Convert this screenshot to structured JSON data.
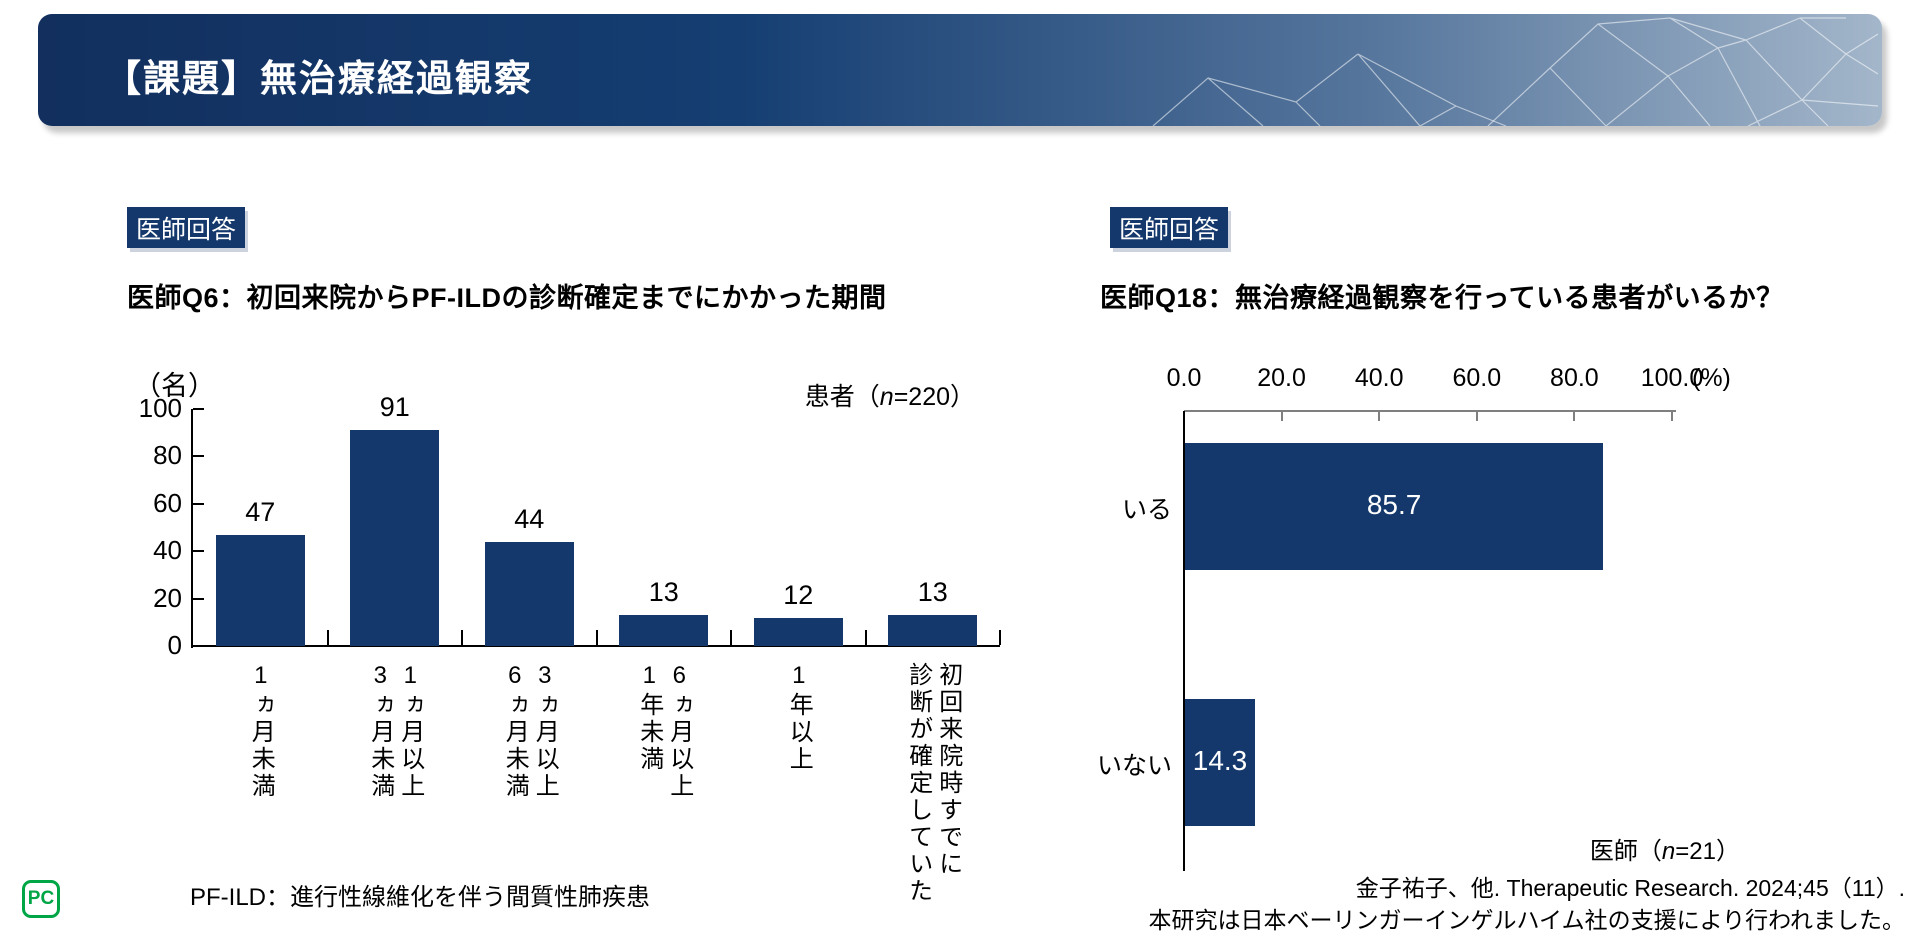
{
  "header": {
    "title": "【課題】無治療経過観察"
  },
  "logo": {
    "text": "PC",
    "color": "#00A546"
  },
  "colors": {
    "navy": "#14386C",
    "axis_gray": "#7f7f7f"
  },
  "left_panel": {
    "badge": "医師回答",
    "title": "医師Q6：初回来院からPF-ILDの診断確定までにかかった期間",
    "unit": "（名）",
    "sample": {
      "prefix": "患者（",
      "n": "n",
      "suffix": "=220）"
    },
    "footnote": "PF-ILD：進行性線維化を伴う間質性肺疾患"
  },
  "right_panel": {
    "badge": "医師回答",
    "title": "医師Q18：無治療経過観察を行っている患者がいるか？",
    "percent_label": "(%)",
    "sample": {
      "prefix": "医師（",
      "n": "n",
      "suffix": "=21）"
    }
  },
  "footer": {
    "citation_line1": "金子祐子、他. Therapeutic Research. 2024;45（11）.",
    "citation_line2": "本研究は日本ベーリンガーインゲルハイム社の支援により行われました。"
  },
  "chart_data": [
    {
      "type": "bar",
      "orientation": "vertical",
      "title": "医師Q6：初回来院からPF-ILDの診断確定までにかかった期間",
      "categories": [
        "1ヵ月未満",
        "1ヵ月以上3ヵ月未満",
        "3ヵ月以上6ヵ月未満",
        "6ヵ月以上1年未満",
        "1年以上",
        "初回来院時すでに診断が確定していた"
      ],
      "category_lines": [
        [
          "1ヵ月未満"
        ],
        [
          "1ヵ月以上",
          "3ヵ月未満"
        ],
        [
          "3ヵ月以上",
          "6ヵ月未満"
        ],
        [
          "6ヵ月以上",
          "1年未満"
        ],
        [
          "1年以上"
        ],
        [
          "初回来院時すでに",
          "診断が確定していた"
        ]
      ],
      "values": [
        47,
        91,
        44,
        13,
        12,
        13
      ],
      "ylabel": "（名）",
      "ylim": [
        0,
        100
      ],
      "yticks": [
        0,
        20,
        40,
        60,
        80,
        100
      ],
      "grid": false,
      "sample": "患者（n=220）"
    },
    {
      "type": "bar",
      "orientation": "horizontal",
      "title": "医師Q18：無治療経過観察を行っている患者がいるか？",
      "categories": [
        "いる",
        "いない"
      ],
      "values": [
        85.7,
        14.3
      ],
      "value_labels": [
        "85.7",
        "14.3"
      ],
      "xlabel": "(%)",
      "xlim": [
        0,
        100
      ],
      "xticks": [
        "0.0",
        "20.0",
        "40.0",
        "60.0",
        "80.0",
        "100.0"
      ],
      "grid": false,
      "sample": "医師（n=21）"
    }
  ]
}
